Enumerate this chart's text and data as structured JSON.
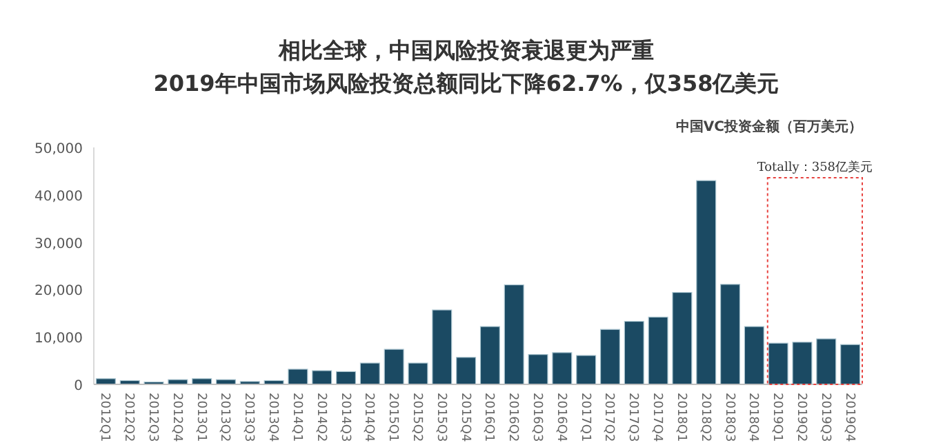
{
  "chart_data": {
    "type": "bar",
    "title": "相比全球，中国风险投资衰退更为严重",
    "subtitle": "2019年中国市场风险投资总额同比下降62.7%，仅358亿美元",
    "ylabel": "中国VC投资金额（百万美元）",
    "categories": [
      "2012Q1",
      "2012Q2",
      "2012Q3",
      "2012Q4",
      "2013Q1",
      "2013Q2",
      "2013Q3",
      "2013Q4",
      "2014Q1",
      "2014Q2",
      "2014Q3",
      "2014Q4",
      "2015Q1",
      "2015Q2",
      "2015Q3",
      "2015Q4",
      "2016Q1",
      "2016Q2",
      "2016Q3",
      "2016Q4",
      "2017Q1",
      "2017Q2",
      "2017Q3",
      "2017Q4",
      "2018Q1",
      "2018Q2",
      "2018Q3",
      "2018Q4",
      "2019Q1",
      "2019Q2",
      "2019Q3",
      "2019Q4"
    ],
    "values": [
      1200,
      800,
      500,
      1000,
      1200,
      1000,
      600,
      800,
      3200,
      2900,
      2700,
      4500,
      7400,
      4500,
      15700,
      5700,
      12200,
      21000,
      6300,
      6700,
      6100,
      11600,
      13300,
      14200,
      19400,
      43000,
      21100,
      12200,
      8700,
      8900,
      9600,
      8400
    ],
    "color": "#1b4a63",
    "ylim": [
      0,
      50000
    ],
    "yticks": [
      0,
      {
        "value": 10000,
        "label": "10,000"
      },
      {
        "value": 20000,
        "label": "20,000"
      },
      {
        "value": 30000,
        "label": "30,000"
      },
      {
        "value": 40000,
        "label": "40,000"
      },
      {
        "value": 50000,
        "label": "50,000"
      }
    ],
    "annotations": [
      "Totally：358亿美元"
    ],
    "grid": false
  }
}
